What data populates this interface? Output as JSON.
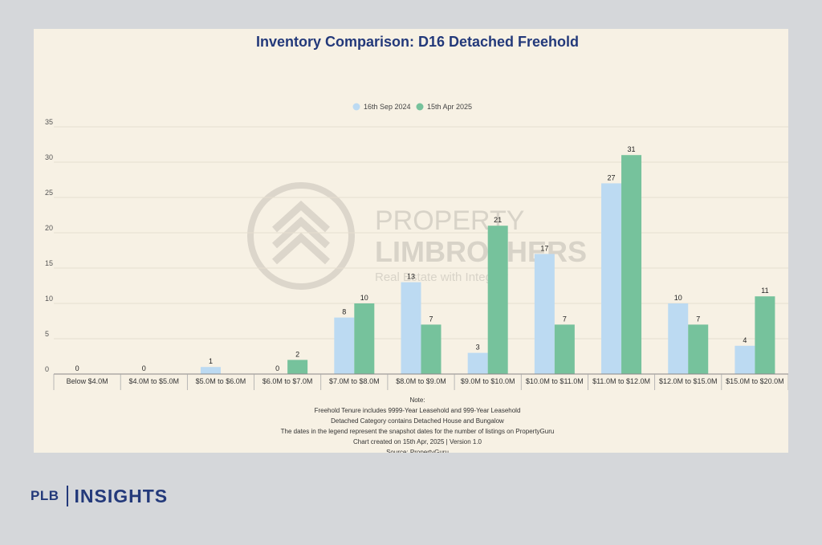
{
  "colors": {
    "series_2024": "#bcdaf2",
    "series_2025": "#76c29c",
    "title": "#23397a",
    "panel_bg": "#f7f1e4",
    "page_bg": "#d5d7da"
  },
  "watermark": {
    "line1": "PROPERTY",
    "line2": "LIMBROTHERS",
    "tagline": "Real Estate with Integrity"
  },
  "notes": [
    "Note:",
    "Freehold Tenure includes 9999-Year Leasehold and 999-Year Leasehold",
    "Detached Category contains Detached House and Bungalow",
    "The dates in the legend represent the snapshot dates for the number of listings on PropertyGuru",
    "Chart created on 15th Apr, 2025 | Version 1.0",
    "Source: PropertyGuru"
  ],
  "brand": {
    "left": "PLB",
    "right": "INSIGHTS"
  },
  "chart_data": {
    "type": "bar",
    "title": "Inventory Comparison: D16 Detached Freehold",
    "categories": [
      "Below $4.0M",
      "$4.0M to $5.0M",
      "$5.0M to $6.0M",
      "$6.0M to $7.0M",
      "$7.0M to $8.0M",
      "$8.0M to $9.0M",
      "$9.0M to $10.0M",
      "$10.0M to $11.0M",
      "$11.0M to $12.0M",
      "$12.0M to $15.0M",
      "$15.0M to $20.0M"
    ],
    "series": [
      {
        "name": "16th Sep 2024",
        "values": [
          0,
          0,
          1,
          0,
          8,
          13,
          3,
          17,
          27,
          10,
          4
        ]
      },
      {
        "name": "15th Apr 2025",
        "values": [
          null,
          null,
          null,
          2,
          10,
          7,
          21,
          7,
          31,
          7,
          11
        ]
      }
    ],
    "yticks": [
      0,
      5,
      10,
      15,
      20,
      25,
      30,
      35
    ],
    "ylim": [
      0,
      35
    ],
    "grid": true,
    "legend_position": "top-center",
    "xlabel": "",
    "ylabel": ""
  }
}
